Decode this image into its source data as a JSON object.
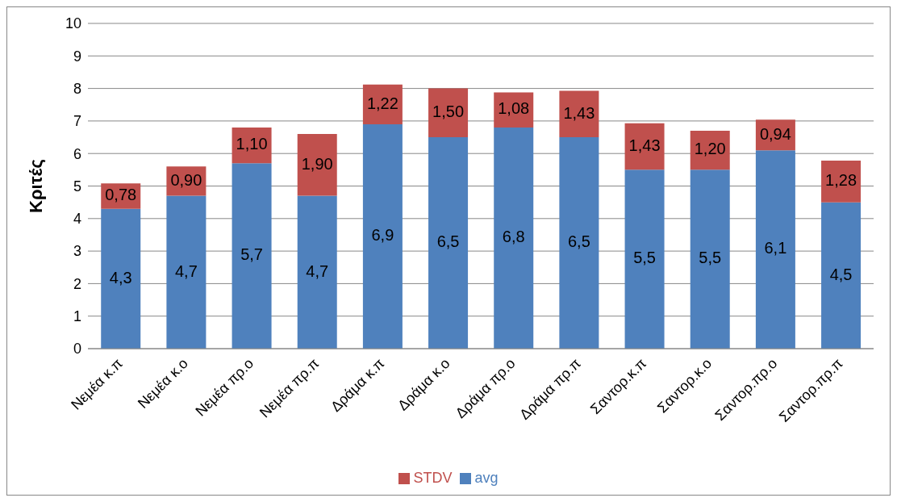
{
  "chart_data": {
    "type": "bar",
    "stacked": true,
    "ylabel": "Κριτές",
    "categories": [
      "Νεμέα κ.π",
      "Νεμέα κ.ο",
      "Νεμέα πρ.ο",
      "Νεμέα πρ.π",
      "Δράμα κ.π",
      "Δράμα κ.ο",
      "Δράμα πρ.ο",
      "Δράμα πρ.π",
      "Σαντορ.κ.π",
      "Σαντορ.κ.ο",
      "Σαντορ.πρ.ο",
      "Σαντορ.πρ.π"
    ],
    "series": [
      {
        "name": "avg",
        "color": "#4f81bd",
        "values": [
          4.3,
          4.7,
          5.7,
          4.7,
          6.9,
          6.5,
          6.8,
          6.5,
          5.5,
          5.5,
          6.1,
          4.5
        ],
        "value_labels": [
          "4,3",
          "4,7",
          "5,7",
          "4,7",
          "6,9",
          "6,5",
          "6,8",
          "6,5",
          "5,5",
          "5,5",
          "6,1",
          "4,5"
        ]
      },
      {
        "name": "STDV",
        "color": "#c0504d",
        "values": [
          0.78,
          0.9,
          1.1,
          1.9,
          1.22,
          1.5,
          1.08,
          1.43,
          1.43,
          1.2,
          0.94,
          1.28
        ],
        "value_labels": [
          "0,78",
          "0,90",
          "1,10",
          "1,90",
          "1,22",
          "1,50",
          "1,08",
          "1,43",
          "1,43",
          "1,20",
          "0,94",
          "1,28"
        ]
      }
    ],
    "ylim": [
      0,
      10
    ],
    "yticks": [
      0,
      1,
      2,
      3,
      4,
      5,
      6,
      7,
      8,
      9,
      10
    ],
    "grid": "y",
    "legend": "bottom"
  }
}
